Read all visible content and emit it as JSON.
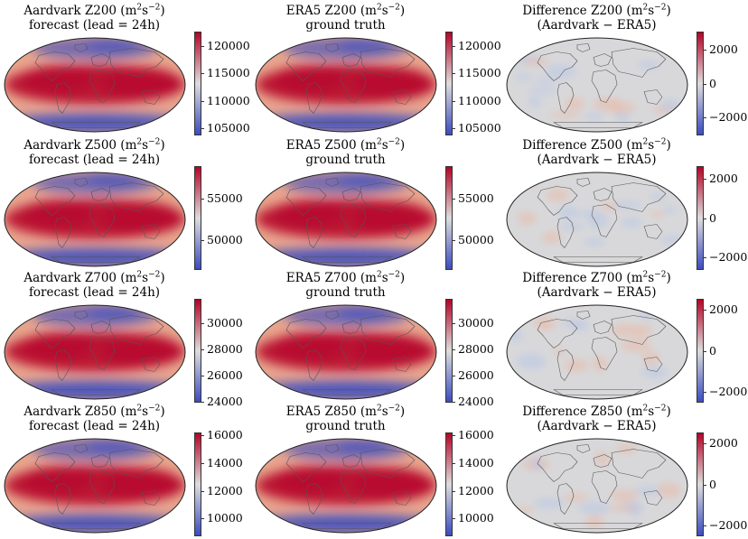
{
  "panels": [
    {
      "title_var": "Aardvark Z200",
      "title_l2": "forecast (lead = 24h)",
      "units": "m",
      "units_exp1": "2",
      "units_mid": "s",
      "units_exp2": "−2",
      "units_close": ")",
      "kind": "absolute",
      "vmin": 103800,
      "vmax": 122500,
      "ticks": [
        "120000",
        "115000",
        "110000",
        "105000"
      ],
      "tick_values": [
        120000,
        115000,
        110000,
        105000
      ]
    },
    {
      "title_var": "ERA5 Z200",
      "title_l2": "ground truth",
      "units": "m",
      "units_exp1": "2",
      "units_mid": "s",
      "units_exp2": "−2",
      "units_close": ")",
      "kind": "absolute",
      "vmin": 103800,
      "vmax": 122500,
      "ticks": [
        "120000",
        "115000",
        "110000",
        "105000"
      ],
      "tick_values": [
        120000,
        115000,
        110000,
        105000
      ]
    },
    {
      "title_var": "Difference Z200",
      "title_l2": "(Aardvark − ERA5)",
      "units": "m",
      "units_exp1": "2",
      "units_mid": "s",
      "units_exp2": "−2",
      "units_close": ")",
      "kind": "difference",
      "vmin": -3000,
      "vmax": 3000,
      "ticks": [
        "2000",
        "0",
        "−2000"
      ],
      "tick_values": [
        2000,
        0,
        -2000
      ]
    },
    {
      "title_var": "Aardvark Z500",
      "title_l2": "forecast (lead = 24h)",
      "units": "m",
      "units_exp1": "2",
      "units_mid": "s",
      "units_exp2": "−2",
      "units_close": ")",
      "kind": "absolute",
      "vmin": 46500,
      "vmax": 58800,
      "ticks": [
        "55000",
        "50000"
      ],
      "tick_values": [
        55000,
        50000
      ]
    },
    {
      "title_var": "ERA5 Z500",
      "title_l2": "ground truth",
      "units": "m",
      "units_exp1": "2",
      "units_mid": "s",
      "units_exp2": "−2",
      "units_close": ")",
      "kind": "absolute",
      "vmin": 46500,
      "vmax": 58800,
      "ticks": [
        "55000",
        "50000"
      ],
      "tick_values": [
        55000,
        50000
      ]
    },
    {
      "title_var": "Difference Z500",
      "title_l2": "(Aardvark − ERA5)",
      "units": "m",
      "units_exp1": "2",
      "units_mid": "s",
      "units_exp2": "−2",
      "units_close": ")",
      "kind": "difference",
      "vmin": -2600,
      "vmax": 2600,
      "ticks": [
        "2000",
        "0",
        "−2000"
      ],
      "tick_values": [
        2000,
        0,
        -2000
      ]
    },
    {
      "title_var": "Aardvark Z700",
      "title_l2": "forecast (lead = 24h)",
      "units": "m",
      "units_exp1": "2",
      "units_mid": "s",
      "units_exp2": "−2",
      "units_close": ")",
      "kind": "absolute",
      "vmin": 24000,
      "vmax": 31800,
      "ticks": [
        "30000",
        "28000",
        "26000",
        "24000"
      ],
      "tick_values": [
        30000,
        28000,
        26000,
        24000
      ]
    },
    {
      "title_var": "ERA5 Z700",
      "title_l2": "ground truth",
      "units": "m",
      "units_exp1": "2",
      "units_mid": "s",
      "units_exp2": "−2",
      "units_close": ")",
      "kind": "absolute",
      "vmin": 24000,
      "vmax": 31800,
      "ticks": [
        "30000",
        "28000",
        "26000",
        "24000"
      ],
      "tick_values": [
        30000,
        28000,
        26000,
        24000
      ]
    },
    {
      "title_var": "Difference Z700",
      "title_l2": "(Aardvark − ERA5)",
      "units": "m",
      "units_exp1": "2",
      "units_mid": "s",
      "units_exp2": "−2",
      "units_close": ")",
      "kind": "difference",
      "vmin": -2500,
      "vmax": 2500,
      "ticks": [
        "2000",
        "0",
        "−2000"
      ],
      "tick_values": [
        2000,
        0,
        -2000
      ]
    },
    {
      "title_var": "Aardvark Z850",
      "title_l2": "forecast (lead = 24h)",
      "units": "m",
      "units_exp1": "2",
      "units_mid": "s",
      "units_exp2": "−2",
      "units_close": ")",
      "kind": "absolute",
      "vmin": 8800,
      "vmax": 16100,
      "ticks": [
        "16000",
        "14000",
        "12000",
        "10000"
      ],
      "tick_values": [
        16000,
        14000,
        12000,
        10000
      ]
    },
    {
      "title_var": "ERA5 Z850",
      "title_l2": "ground truth",
      "units": "m",
      "units_exp1": "2",
      "units_mid": "s",
      "units_exp2": "−2",
      "units_close": ")",
      "kind": "absolute",
      "vmin": 8800,
      "vmax": 16100,
      "ticks": [
        "16000",
        "14000",
        "12000",
        "10000"
      ],
      "tick_values": [
        16000,
        14000,
        12000,
        10000
      ]
    },
    {
      "title_var": "Difference Z850",
      "title_l2": "(Aardvark − ERA5)",
      "units": "m",
      "units_exp1": "2",
      "units_mid": "s",
      "units_exp2": "−2",
      "units_close": ")",
      "kind": "difference",
      "vmin": -2500,
      "vmax": 2500,
      "ticks": [
        "2000",
        "0",
        "−2000"
      ],
      "tick_values": [
        2000,
        0,
        -2000
      ]
    }
  ],
  "colors": {
    "cmap_low": "#3b4cc0",
    "cmap_mid": "#dddddd",
    "cmap_high": "#b40426",
    "coast": "#555555",
    "frame": "#222222",
    "diff_field": "#d8d8da"
  }
}
